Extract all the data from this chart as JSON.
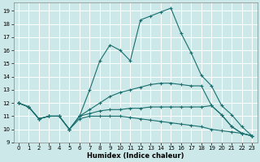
{
  "xlabel": "Humidex (Indice chaleur)",
  "bg_color": "#cce8e8",
  "grid_color": "#ffffff",
  "line_color": "#1a6e6e",
  "xlim": [
    -0.5,
    23.5
  ],
  "ylim": [
    9,
    19.6
  ],
  "yticks": [
    9,
    10,
    11,
    12,
    13,
    14,
    15,
    16,
    17,
    18,
    19
  ],
  "xticks": [
    0,
    1,
    2,
    3,
    4,
    5,
    6,
    7,
    8,
    9,
    10,
    11,
    12,
    13,
    14,
    15,
    16,
    17,
    18,
    19,
    20,
    21,
    22,
    23
  ],
  "series": [
    {
      "x": [
        0,
        1,
        2,
        3,
        4,
        5,
        6,
        7,
        8,
        9,
        10,
        11,
        12,
        13,
        14,
        15,
        16,
        17,
        18,
        19,
        20,
        21,
        22,
        23
      ],
      "y": [
        12.0,
        11.7,
        10.8,
        11.0,
        11.0,
        10.0,
        11.0,
        13.0,
        15.2,
        16.4,
        16.0,
        15.2,
        18.3,
        18.6,
        18.9,
        19.2,
        17.3,
        15.8,
        14.1,
        13.3,
        11.8,
        11.1,
        10.2,
        9.5
      ]
    },
    {
      "x": [
        0,
        1,
        2,
        3,
        4,
        5,
        6,
        7,
        8,
        9,
        10,
        11,
        12,
        13,
        14,
        15,
        16,
        17,
        18,
        19,
        20,
        21,
        22,
        23
      ],
      "y": [
        12.0,
        11.7,
        10.8,
        11.0,
        11.0,
        10.0,
        11.0,
        11.5,
        12.0,
        12.5,
        12.8,
        13.0,
        13.2,
        13.4,
        13.5,
        13.5,
        13.4,
        13.3,
        13.3,
        11.8,
        11.1,
        10.2,
        9.7,
        9.5
      ]
    },
    {
      "x": [
        0,
        1,
        2,
        3,
        4,
        5,
        6,
        7,
        8,
        9,
        10,
        11,
        12,
        13,
        14,
        15,
        16,
        17,
        18,
        19,
        20,
        21,
        22,
        23
      ],
      "y": [
        12.0,
        11.7,
        10.8,
        11.0,
        11.0,
        10.0,
        11.0,
        11.2,
        11.4,
        11.5,
        11.5,
        11.6,
        11.6,
        11.7,
        11.7,
        11.7,
        11.7,
        11.7,
        11.7,
        11.8,
        11.1,
        10.2,
        9.7,
        9.5
      ]
    },
    {
      "x": [
        0,
        1,
        2,
        3,
        4,
        5,
        6,
        7,
        8,
        9,
        10,
        11,
        12,
        13,
        14,
        15,
        16,
        17,
        18,
        19,
        20,
        21,
        22,
        23
      ],
      "y": [
        12.0,
        11.7,
        10.8,
        11.0,
        11.0,
        10.0,
        10.8,
        11.0,
        11.0,
        11.0,
        11.0,
        10.9,
        10.8,
        10.7,
        10.6,
        10.5,
        10.4,
        10.3,
        10.2,
        10.0,
        9.9,
        9.8,
        9.7,
        9.5
      ]
    }
  ]
}
